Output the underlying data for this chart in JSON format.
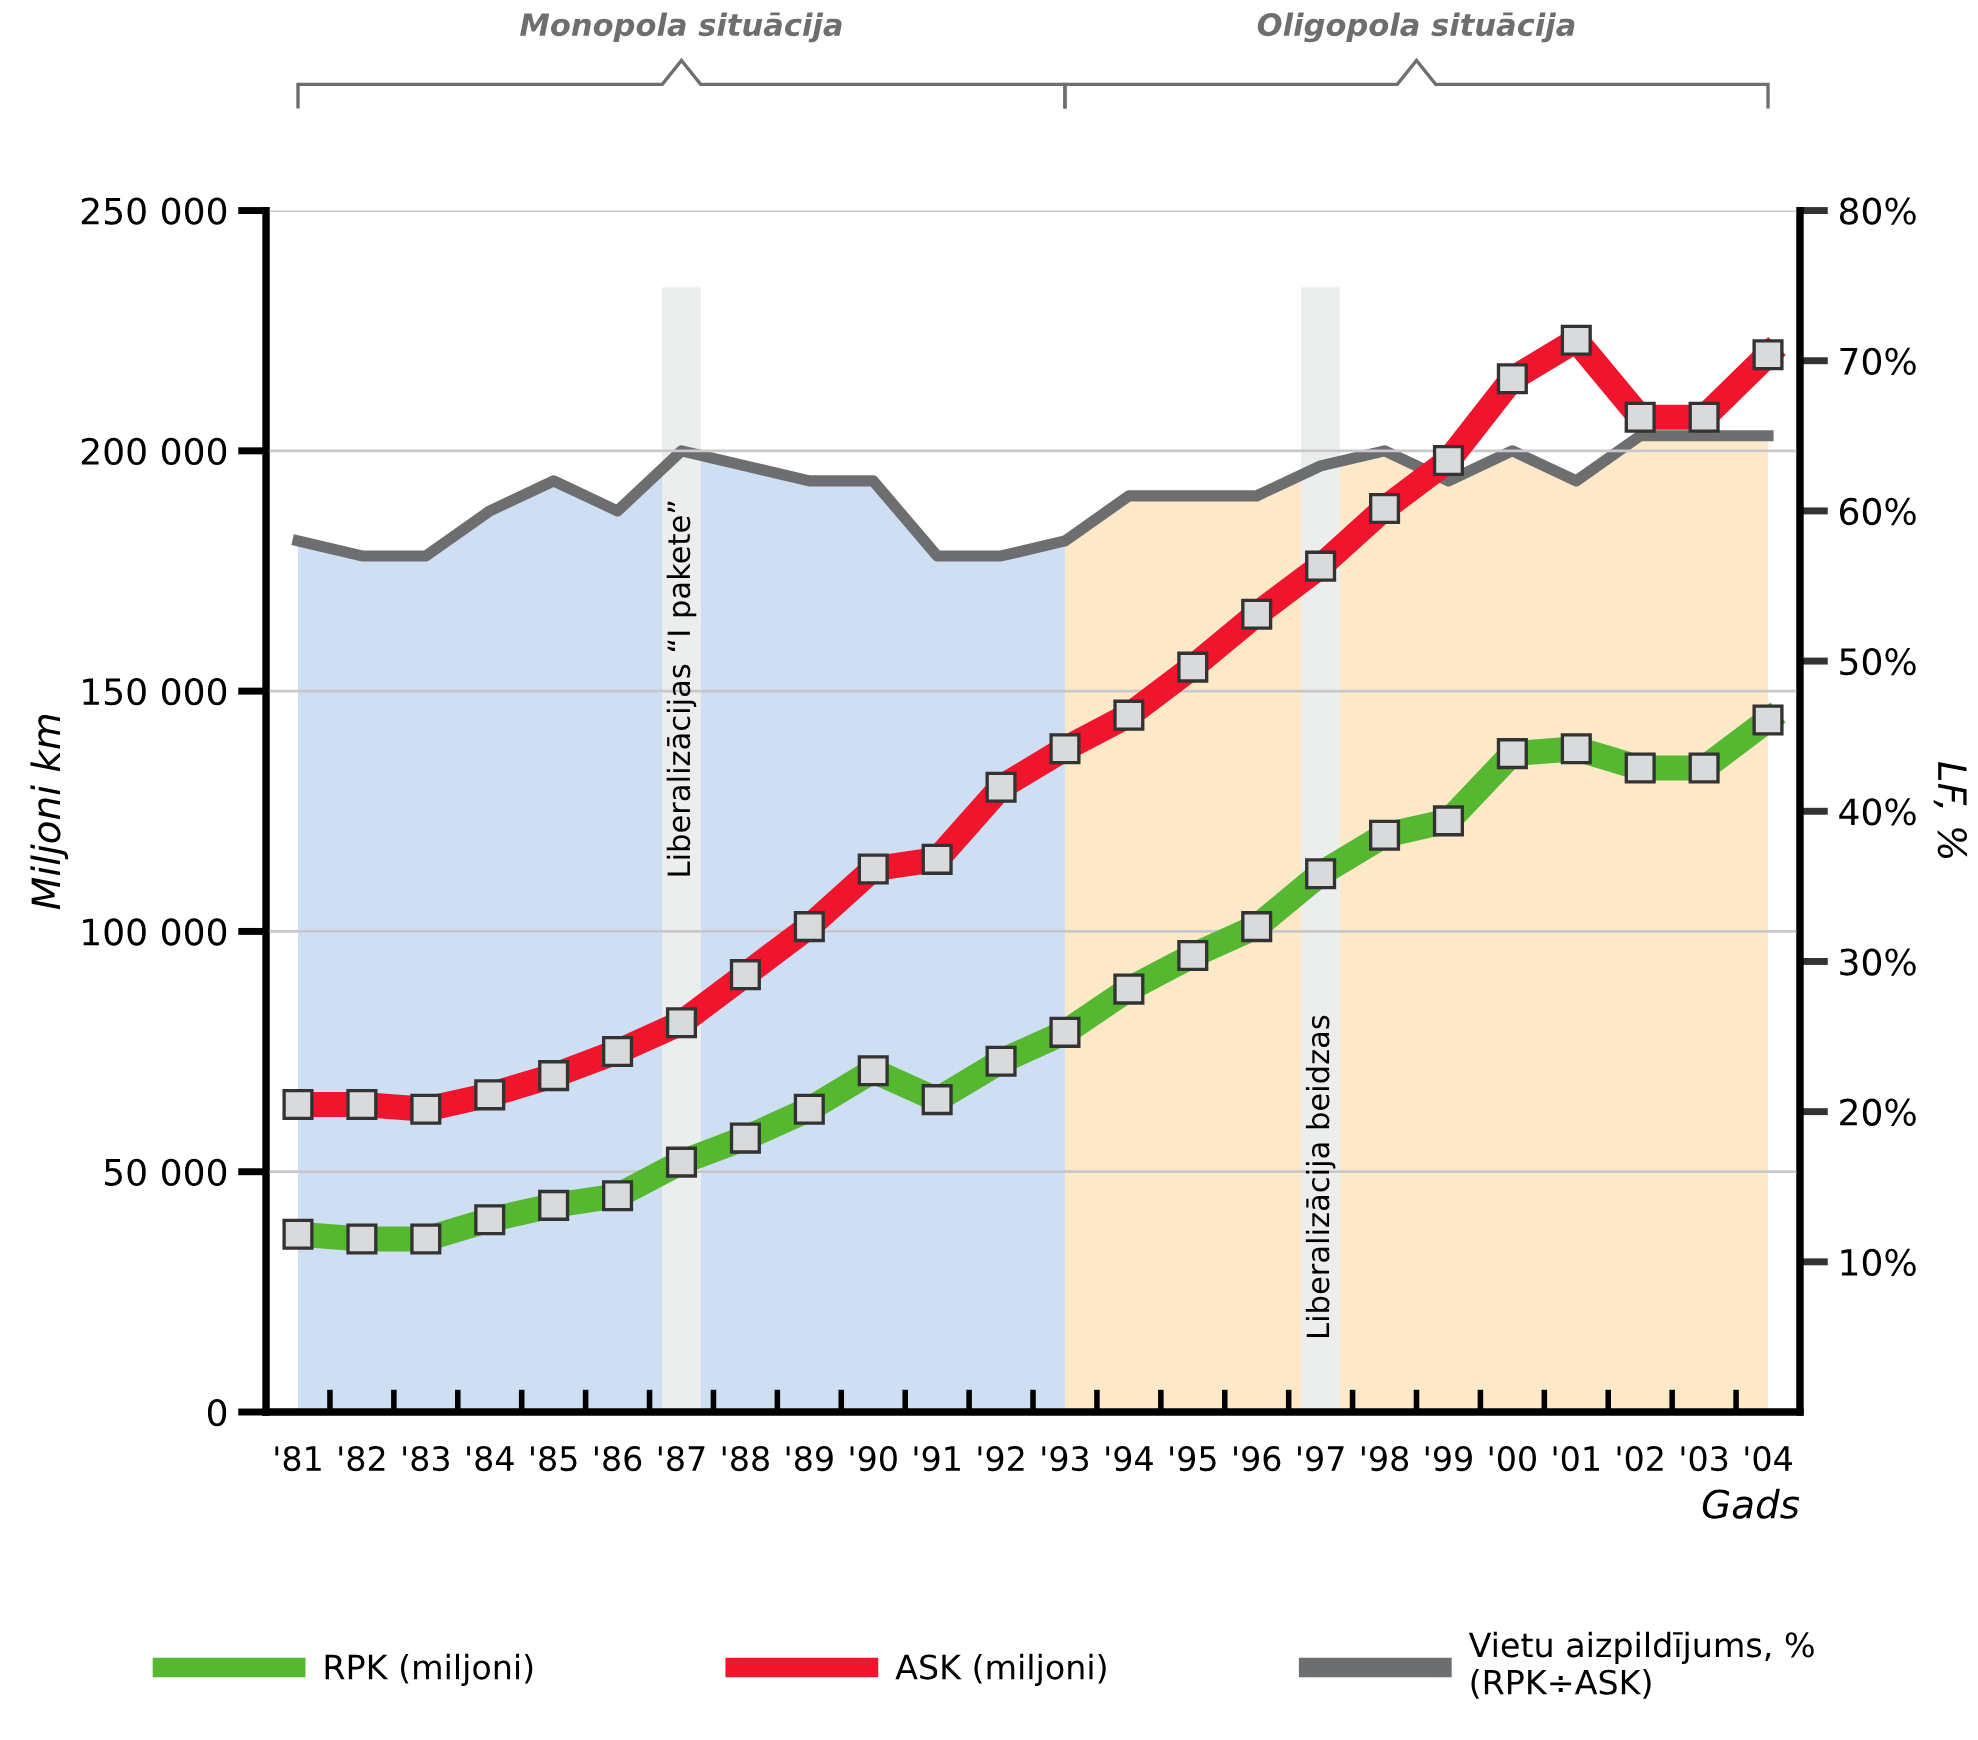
{
  "chart_data": {
    "type": "line",
    "categories": [
      "'81",
      "'82",
      "'83",
      "'84",
      "'85",
      "'86",
      "'87",
      "'88",
      "'89",
      "'90",
      "'91",
      "'92",
      "'93",
      "'94",
      "'95",
      "'96",
      "'97",
      "'98",
      "'99",
      "'00",
      "'01",
      "'02",
      "'03",
      "'04"
    ],
    "series": [
      {
        "name": "RPK (miljoni)",
        "color": "#56b830",
        "values": [
          37000,
          36000,
          36000,
          40000,
          43000,
          45000,
          52000,
          57000,
          63000,
          71000,
          65000,
          73000,
          79000,
          88000,
          95000,
          101000,
          112000,
          120000,
          123000,
          137000,
          138000,
          134000,
          134000,
          144000
        ]
      },
      {
        "name": "ASK (miljoni)",
        "color": "#f0142d",
        "values": [
          64000,
          64000,
          63000,
          66000,
          70000,
          75000,
          81000,
          91000,
          101000,
          113000,
          115000,
          130000,
          138000,
          145000,
          155000,
          166000,
          176000,
          188000,
          198000,
          215000,
          223000,
          207000,
          207000,
          220000
        ]
      },
      {
        "name": "Vietu aizpildījums, %\n(RPK÷ASK)",
        "color": "#6d6e70",
        "axis": "y2",
        "marker": "none",
        "values": [
          58,
          57,
          57,
          60,
          62,
          60,
          64,
          63,
          62,
          62,
          57,
          57,
          58,
          61,
          61,
          61,
          63,
          64,
          62,
          64,
          62,
          65,
          65,
          65
        ]
      }
    ],
    "marker": "square",
    "xlabel": "Gads",
    "ylabel": "Miljoni km",
    "y2label": "LF, %",
    "ylim": [
      0,
      250000
    ],
    "yticks": [
      0,
      {
        "value": 50000,
        "label": "50 000"
      },
      {
        "value": 100000,
        "label": "100 000"
      },
      {
        "value": 150000,
        "label": "150 000"
      },
      {
        "value": 200000,
        "label": "200 000"
      },
      {
        "value": 250000,
        "label": "250 000"
      }
    ],
    "y2lim": [
      0,
      80
    ],
    "y2ticks": [
      {
        "value": 10,
        "label": "10%"
      },
      {
        "value": 20,
        "label": "20%"
      },
      {
        "value": 30,
        "label": "30%"
      },
      {
        "value": 40,
        "label": "40%"
      },
      {
        "value": 50,
        "label": "50%"
      },
      {
        "value": 60,
        "label": "60%"
      },
      {
        "value": 70,
        "label": "70%"
      },
      {
        "value": 80,
        "label": "80%"
      }
    ],
    "bands": [
      {
        "axis": "x",
        "from": "'81",
        "to": "'93",
        "color": "#cfdff3"
      },
      {
        "axis": "x",
        "from": "'93",
        "to": "'04",
        "color": "#fde8c8"
      }
    ],
    "annotations": [
      "Monopola situācija",
      "Oligopola situācija"
    ],
    "ref_lines": [
      {
        "axis": "x",
        "value": "'87",
        "label": "Liberalizācijas “I pakete”",
        "color": "#eceeee"
      },
      {
        "axis": "x",
        "value": "'97",
        "label": "Liberalizācija beidzas",
        "color": "#eceeee"
      }
    ],
    "grid": "y",
    "legend": "bottom"
  }
}
